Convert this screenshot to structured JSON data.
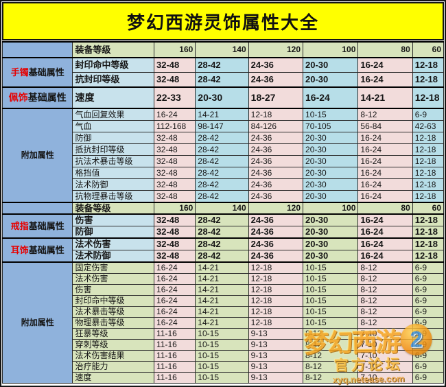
{
  "title": "梦幻西游灵饰属性大全",
  "colors": {
    "title_bg": "#ffff00",
    "header_green": "#d8e4bc",
    "value_pink": "#f2dcdb",
    "value_blue": "#b7dee8",
    "value_green": "#d8e4bc",
    "label_blue": "#c8e2ec",
    "category_blue": "#8fb2dc",
    "category_red": "#e60000"
  },
  "watermark": {
    "logo_text": "梦幻西游",
    "logo_number": "2",
    "subtitle": "官方论坛",
    "url": "xyq.netease.com"
  },
  "table": {
    "header": {
      "label": "装备等级",
      "levels": [
        "160",
        "140",
        "120",
        "100",
        "80",
        "60"
      ]
    },
    "sections": [
      {
        "palette": "blue",
        "groups": [
          {
            "category": {
              "highlight": "手镯",
              "rest": "基础属性"
            },
            "rows": [
              {
                "label": "封印命中等级",
                "values": [
                  "32-48",
                  "28-42",
                  "24-36",
                  "20-30",
                  "16-24",
                  "12-18"
                ]
              },
              {
                "label": "抗封印等级",
                "values": [
                  "32-48",
                  "28-42",
                  "24-36",
                  "20-30",
                  "16-24",
                  "12-18"
                ]
              }
            ]
          },
          {
            "category": {
              "highlight": "佩饰",
              "rest": "基础属性"
            },
            "rows": [
              {
                "label": "速度",
                "values": [
                  "22-33",
                  "20-30",
                  "18-27",
                  "16-24",
                  "14-21",
                  "12-18"
                ]
              }
            ]
          },
          {
            "category": {
              "highlight": "",
              "rest": "附加属性"
            },
            "rows": [
              {
                "label": "气血回复效果",
                "values": [
                  "16-24",
                  "14-21",
                  "12-18",
                  "10-15",
                  "8-12",
                  "6-9"
                ]
              },
              {
                "label": "气血",
                "values": [
                  "112-168",
                  "98-147",
                  "84-126",
                  "70-105",
                  "56-84",
                  "42-63"
                ]
              },
              {
                "label": "防御",
                "values": [
                  "32-48",
                  "28-42",
                  "24-36",
                  "20-30",
                  "16-24",
                  "12-18"
                ]
              },
              {
                "label": "抵抗封印等级",
                "values": [
                  "32-48",
                  "28-42",
                  "24-36",
                  "20-30",
                  "16-24",
                  "12-18"
                ]
              },
              {
                "label": "抗法术暴击等级",
                "values": [
                  "32-48",
                  "28-42",
                  "24-36",
                  "20-30",
                  "16-24",
                  "12-18"
                ]
              },
              {
                "label": "格挡值",
                "values": [
                  "32-48",
                  "28-42",
                  "24-36",
                  "20-30",
                  "16-24",
                  "12-18"
                ]
              },
              {
                "label": "法术防御",
                "values": [
                  "32-48",
                  "28-42",
                  "24-36",
                  "20-30",
                  "16-24",
                  "12-18"
                ]
              },
              {
                "label": "抗物理暴击等级",
                "values": [
                  "32-48",
                  "28-42",
                  "24-36",
                  "20-30",
                  "16-24",
                  "12-18"
                ]
              }
            ]
          }
        ]
      },
      {
        "palette": "green",
        "groups": [
          {
            "category": {
              "highlight": "戒指",
              "rest": "基础属性"
            },
            "rows": [
              {
                "label": "伤害",
                "values": [
                  "32-48",
                  "28-42",
                  "24-36",
                  "20-30",
                  "16-24",
                  "12-18"
                ]
              },
              {
                "label": "防御",
                "values": [
                  "32-48",
                  "28-42",
                  "24-36",
                  "20-30",
                  "16-24",
                  "12-18"
                ]
              }
            ]
          },
          {
            "category": {
              "highlight": "耳饰",
              "rest": "基础属性"
            },
            "rows": [
              {
                "label": "法术伤害",
                "values": [
                  "32-48",
                  "28-42",
                  "24-36",
                  "20-30",
                  "16-24",
                  "12-18"
                ]
              },
              {
                "label": "法术防御",
                "values": [
                  "32-48",
                  "28-42",
                  "24-36",
                  "20-30",
                  "16-24",
                  "12-18"
                ]
              }
            ]
          },
          {
            "category": {
              "highlight": "",
              "rest": "附加属性"
            },
            "rows": [
              {
                "label": "固定伤害",
                "values": [
                  "16-24",
                  "14-21",
                  "12-18",
                  "10-15",
                  "8-12",
                  "6-9"
                ]
              },
              {
                "label": "法术伤害",
                "values": [
                  "16-24",
                  "14-21",
                  "12-18",
                  "10-15",
                  "8-12",
                  "6-9"
                ]
              },
              {
                "label": "伤害",
                "values": [
                  "16-24",
                  "14-21",
                  "12-18",
                  "10-15",
                  "8-12",
                  "6-9"
                ]
              },
              {
                "label": "封印命中等级",
                "values": [
                  "16-24",
                  "14-21",
                  "12-18",
                  "10-15",
                  "8-12",
                  "6-9"
                ]
              },
              {
                "label": "法术暴击等级",
                "values": [
                  "16-24",
                  "14-21",
                  "12-18",
                  "10-15",
                  "8-12",
                  "6-9"
                ]
              },
              {
                "label": "物理暴击等级",
                "values": [
                  "16-24",
                  "14-21",
                  "12-18",
                  "10-15",
                  "8-12",
                  "6-9"
                ]
              },
              {
                "label": "狂暴等级",
                "values": [
                  "11-16",
                  "10-15",
                  "9-13",
                  "8-12",
                  "7-10",
                  "6-9"
                ]
              },
              {
                "label": "穿刺等级",
                "values": [
                  "11-16",
                  "10-15",
                  "9-13",
                  "8-12",
                  "7-10",
                  "6-9"
                ]
              },
              {
                "label": "法术伤害结果",
                "values": [
                  "11-16",
                  "10-15",
                  "9-13",
                  "8-12",
                  "7-10",
                  "6-9"
                ]
              },
              {
                "label": "治疗能力",
                "values": [
                  "11-16",
                  "10-15",
                  "9-13",
                  "8-12",
                  "7-10",
                  "6-9"
                ]
              },
              {
                "label": "速度",
                "values": [
                  "11-16",
                  "10-15",
                  "9-13",
                  "8-12",
                  "7-10",
                  "6-9"
                ]
              }
            ]
          }
        ]
      }
    ]
  }
}
